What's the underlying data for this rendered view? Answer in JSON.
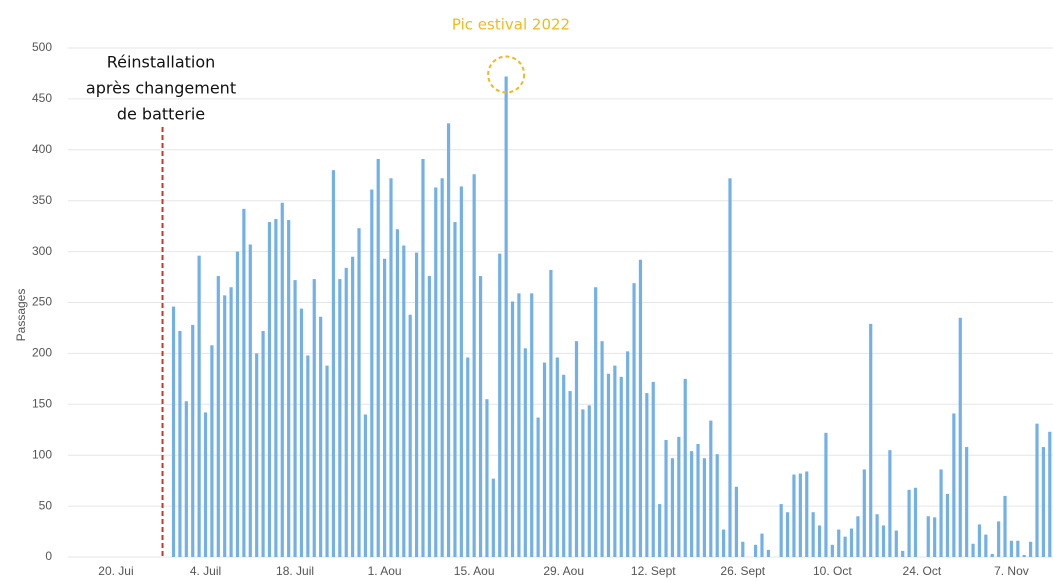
{
  "chart_data": {
    "type": "bar",
    "y_label": "Passages",
    "annotations": {
      "event": [
        "Réinstallation",
        "après changement",
        "de batterie"
      ],
      "peak": "Pic estival 2022"
    },
    "color": "#74b0e8",
    "grid": true,
    "ylim": [
      0,
      500
    ],
    "yticks": [
      0,
      50,
      100,
      150,
      200,
      250,
      300,
      350,
      400,
      450,
      500
    ],
    "categories": [
      null,
      null,
      null,
      null,
      null,
      null,
      null,
      "20. Jui",
      null,
      null,
      null,
      null,
      null,
      null,
      null,
      null,
      null,
      null,
      null,
      null,
      null,
      "4. Juil",
      null,
      null,
      null,
      null,
      null,
      null,
      null,
      null,
      null,
      null,
      null,
      null,
      null,
      "18. Juil",
      null,
      null,
      null,
      null,
      null,
      null,
      null,
      null,
      null,
      null,
      null,
      null,
      null,
      "1. Aou",
      null,
      null,
      null,
      null,
      null,
      null,
      null,
      null,
      null,
      null,
      null,
      null,
      null,
      "15. Aou",
      null,
      null,
      null,
      null,
      null,
      null,
      null,
      null,
      null,
      null,
      null,
      null,
      null,
      "29. Aou",
      null,
      null,
      null,
      null,
      null,
      null,
      null,
      null,
      null,
      null,
      null,
      null,
      null,
      "12. Sept",
      null,
      null,
      null,
      null,
      null,
      null,
      null,
      null,
      null,
      null,
      null,
      null,
      null,
      "26. Sept",
      null,
      null,
      null,
      null,
      null,
      null,
      null,
      null,
      null,
      null,
      null,
      null,
      null,
      "10. Oct",
      null,
      null,
      null,
      null,
      null,
      null,
      null,
      null,
      null,
      null,
      null,
      null,
      null,
      "24. Oct",
      null,
      null,
      null,
      null,
      null,
      null,
      null,
      null,
      null,
      null,
      null,
      null,
      null,
      "7. Nov",
      null,
      null,
      null,
      null,
      null,
      null
    ],
    "values": [
      null,
      null,
      null,
      null,
      null,
      null,
      null,
      null,
      null,
      null,
      null,
      null,
      null,
      null,
      null,
      null,
      246,
      222,
      153,
      228,
      296,
      142,
      208,
      276,
      257,
      265,
      300,
      342,
      307,
      200,
      222,
      329,
      332,
      348,
      331,
      272,
      244,
      198,
      273,
      236,
      188,
      380,
      273,
      284,
      295,
      323,
      140,
      361,
      391,
      293,
      372,
      322,
      306,
      238,
      299,
      391,
      276,
      363,
      372,
      426,
      329,
      364,
      196,
      376,
      276,
      155,
      77,
      298,
      472,
      251,
      259,
      205,
      259,
      137,
      191,
      282,
      196,
      179,
      163,
      212,
      145,
      149,
      265,
      212,
      180,
      188,
      177,
      202,
      269,
      292,
      161,
      172,
      52,
      115,
      97,
      118,
      175,
      104,
      111,
      97,
      134,
      101,
      27,
      372,
      69,
      15,
      0,
      12,
      23,
      7,
      0,
      52,
      44,
      81,
      82,
      84,
      44,
      31,
      122,
      12,
      27,
      20,
      28,
      40,
      86,
      229,
      42,
      31,
      105,
      26,
      6,
      66,
      68,
      0,
      40,
      39,
      86,
      62,
      141,
      235,
      108,
      13,
      32,
      22,
      3,
      35,
      60,
      16,
      16,
      2,
      15,
      131,
      108,
      123
    ]
  }
}
